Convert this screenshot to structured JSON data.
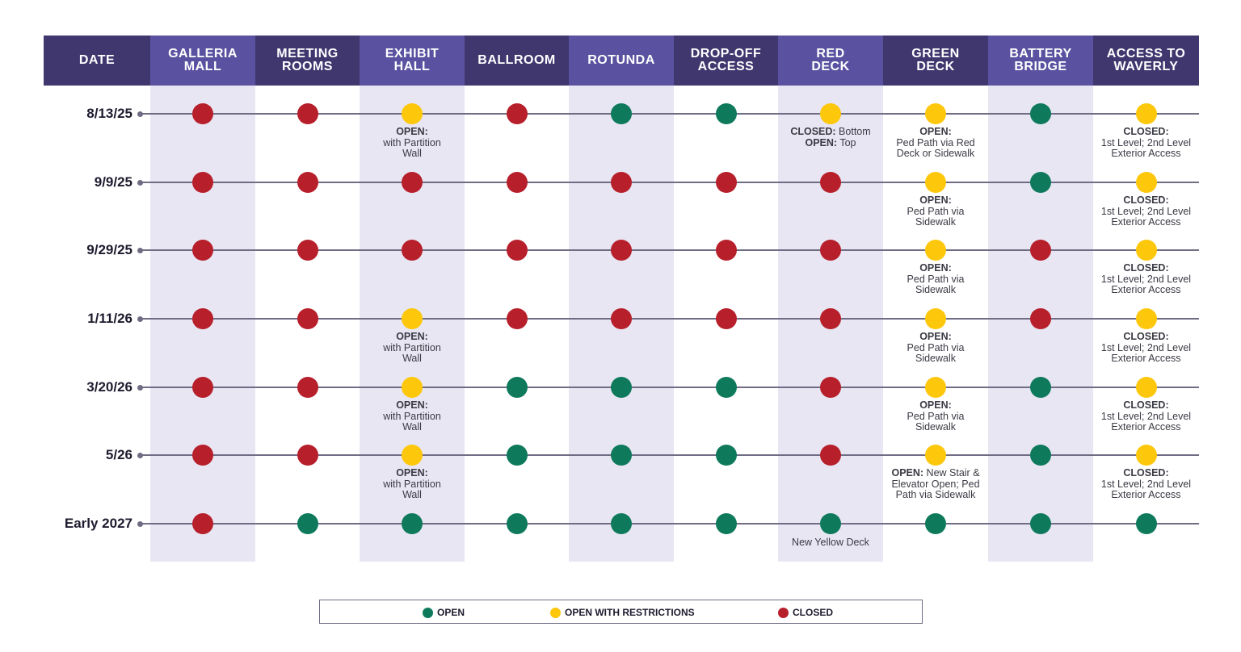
{
  "colors": {
    "open": "#0e7a5b",
    "restricted": "#fdc70c",
    "closed": "#b71f2b",
    "header_dark": "#40376f",
    "header_light": "#5a52a0"
  },
  "columns": [
    {
      "key": "date",
      "label": "DATE"
    },
    {
      "key": "galleria",
      "label": "GALLERIA\nMALL"
    },
    {
      "key": "meeting",
      "label": "MEETING\nROOMS"
    },
    {
      "key": "exhibit",
      "label": "EXHIBIT\nHALL"
    },
    {
      "key": "ballroom",
      "label": "BALLROOM"
    },
    {
      "key": "rotunda",
      "label": "ROTUNDA"
    },
    {
      "key": "dropoff",
      "label": "DROP-OFF\nACCESS"
    },
    {
      "key": "reddeck",
      "label": "RED\nDECK"
    },
    {
      "key": "greendeck",
      "label": "GREEN\nDECK"
    },
    {
      "key": "battery",
      "label": "BATTERY\nBRIDGE"
    },
    {
      "key": "waverly",
      "label": "ACCESS TO\nWAVERLY"
    }
  ],
  "rows": [
    {
      "date": "8/13/25",
      "status": [
        "closed",
        "closed",
        "restricted",
        "closed",
        "open",
        "open",
        "restricted",
        "restricted",
        "open",
        "restricted"
      ],
      "notes": [
        null,
        null,
        [
          {
            "b": "OPEN:"
          },
          {
            "t": "with Partition"
          },
          {
            "t": "Wall"
          }
        ],
        null,
        null,
        null,
        [
          {
            "b": "CLOSED:",
            "t": " Bottom"
          },
          {
            "b": "OPEN:",
            "t": " Top"
          }
        ],
        [
          {
            "b": "OPEN:"
          },
          {
            "t": "Ped Path via Red"
          },
          {
            "t": "Deck or Sidewalk"
          }
        ],
        null,
        [
          {
            "b": "CLOSED:"
          },
          {
            "t": "1st Level; 2nd Level"
          },
          {
            "t": "Exterior Access"
          }
        ]
      ]
    },
    {
      "date": "9/9/25",
      "status": [
        "closed",
        "closed",
        "closed",
        "closed",
        "closed",
        "closed",
        "closed",
        "restricted",
        "open",
        "restricted"
      ],
      "notes": [
        null,
        null,
        null,
        null,
        null,
        null,
        null,
        [
          {
            "b": "OPEN:"
          },
          {
            "t": "Ped Path via"
          },
          {
            "t": "Sidewalk"
          }
        ],
        null,
        [
          {
            "b": "CLOSED:"
          },
          {
            "t": "1st Level; 2nd Level"
          },
          {
            "t": "Exterior Access"
          }
        ]
      ]
    },
    {
      "date": "9/29/25",
      "status": [
        "closed",
        "closed",
        "closed",
        "closed",
        "closed",
        "closed",
        "closed",
        "restricted",
        "closed",
        "restricted"
      ],
      "notes": [
        null,
        null,
        null,
        null,
        null,
        null,
        null,
        [
          {
            "b": "OPEN:"
          },
          {
            "t": "Ped Path via"
          },
          {
            "t": "Sidewalk"
          }
        ],
        null,
        [
          {
            "b": "CLOSED:"
          },
          {
            "t": "1st Level; 2nd Level"
          },
          {
            "t": "Exterior Access"
          }
        ]
      ]
    },
    {
      "date": "1/11/26",
      "status": [
        "closed",
        "closed",
        "restricted",
        "closed",
        "closed",
        "closed",
        "closed",
        "restricted",
        "closed",
        "restricted"
      ],
      "notes": [
        null,
        null,
        [
          {
            "b": "OPEN:"
          },
          {
            "t": "with Partition"
          },
          {
            "t": "Wall"
          }
        ],
        null,
        null,
        null,
        null,
        [
          {
            "b": "OPEN:"
          },
          {
            "t": "Ped Path via"
          },
          {
            "t": "Sidewalk"
          }
        ],
        null,
        [
          {
            "b": "CLOSED:"
          },
          {
            "t": "1st Level; 2nd Level"
          },
          {
            "t": "Exterior Access"
          }
        ]
      ]
    },
    {
      "date": "3/20/26",
      "status": [
        "closed",
        "closed",
        "restricted",
        "open",
        "open",
        "open",
        "closed",
        "restricted",
        "open",
        "restricted"
      ],
      "notes": [
        null,
        null,
        [
          {
            "b": "OPEN:"
          },
          {
            "t": "with Partition"
          },
          {
            "t": "Wall"
          }
        ],
        null,
        null,
        null,
        null,
        [
          {
            "b": "OPEN:"
          },
          {
            "t": "Ped Path via"
          },
          {
            "t": "Sidewalk"
          }
        ],
        null,
        [
          {
            "b": "CLOSED:"
          },
          {
            "t": "1st Level; 2nd Level"
          },
          {
            "t": "Exterior Access"
          }
        ]
      ]
    },
    {
      "date": "5/26",
      "status": [
        "closed",
        "closed",
        "restricted",
        "open",
        "open",
        "open",
        "closed",
        "restricted",
        "open",
        "restricted"
      ],
      "notes": [
        null,
        null,
        [
          {
            "b": "OPEN:"
          },
          {
            "t": "with Partition"
          },
          {
            "t": "Wall"
          }
        ],
        null,
        null,
        null,
        null,
        [
          {
            "b": "OPEN:",
            "t": " New Stair &"
          },
          {
            "t": "Elevator Open; Ped"
          },
          {
            "t": "Path via Sidewalk"
          }
        ],
        null,
        [
          {
            "b": "CLOSED:"
          },
          {
            "t": "1st Level; 2nd Level"
          },
          {
            "t": "Exterior Access"
          }
        ]
      ]
    },
    {
      "date": "Early 2027",
      "status": [
        "closed",
        "open",
        "open",
        "open",
        "open",
        "open",
        "open",
        "open",
        "open",
        "open"
      ],
      "notes": [
        null,
        null,
        null,
        null,
        null,
        null,
        [
          {
            "t": "New Yellow Deck"
          }
        ],
        null,
        null,
        null
      ]
    }
  ],
  "legend": [
    {
      "status": "open",
      "label": "OPEN"
    },
    {
      "status": "restricted",
      "label": "OPEN WITH RESTRICTIONS"
    },
    {
      "status": "closed",
      "label": "CLOSED"
    }
  ]
}
